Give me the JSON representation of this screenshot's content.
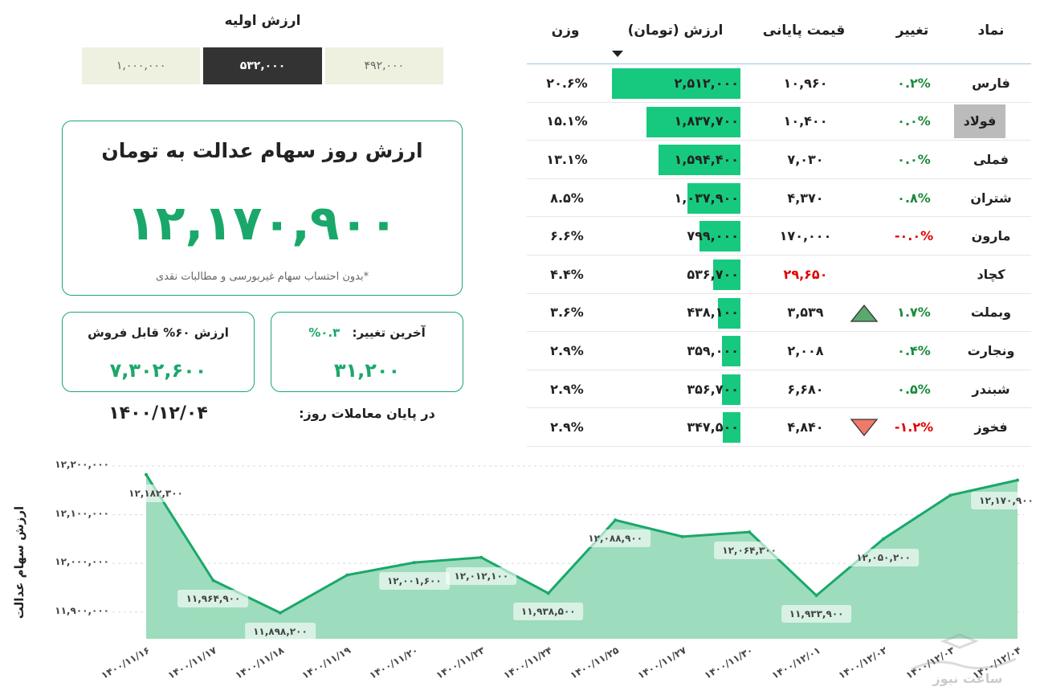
{
  "initial_value": {
    "title": "ارزش اولیه",
    "options": [
      "۱,۰۰۰,۰۰۰",
      "۵۳۲,۰۰۰",
      "۴۹۲,۰۰۰"
    ],
    "selected": "۵۳۲,۰۰۰"
  },
  "main_card": {
    "title": "ارزش روز سهام عدالت به تومان",
    "value": "۱۲,۱۷۰,۹۰۰",
    "note": "*بدون احتساب سهام غیربورسی و مطالبات نقدی"
  },
  "sell_card": {
    "label": "ارزش ۶۰% قابل فروش",
    "value": "۷,۳۰۲,۶۰۰"
  },
  "change_card": {
    "label": "آخرین تغییر:",
    "pct": "۰.۳%",
    "value": "۳۱,۲۰۰"
  },
  "date": {
    "label": "در پایان معاملات روز:",
    "value": "۱۴۰۰/۱۲/۰۴"
  },
  "table": {
    "headers": {
      "symbol": "نماد",
      "change": "تغییر",
      "price": "قیمت پایانی",
      "value": "ارزش (تومان)",
      "weight": "وزن"
    },
    "rows": [
      {
        "symbol": "فارس",
        "change": "۰.۲%",
        "dir": "pos",
        "price": "۱۰,۹۶۰",
        "price_color": "",
        "value": "۲,۵۱۲,۰۰۰",
        "weight": "۲۰.۶%",
        "bar": 2512000,
        "arrow": "",
        "highlight": false
      },
      {
        "symbol": "فولاد",
        "change": "۰.۰%",
        "dir": "pos",
        "price": "۱۰,۴۰۰",
        "price_color": "",
        "value": "۱,۸۳۷,۷۰۰",
        "weight": "۱۵.۱%",
        "bar": 1837700,
        "arrow": "",
        "highlight": true
      },
      {
        "symbol": "فملی",
        "change": "۰.۰%",
        "dir": "pos",
        "price": "۷,۰۳۰",
        "price_color": "",
        "value": "۱,۵۹۴,۴۰۰",
        "weight": "۱۳.۱%",
        "bar": 1594400,
        "arrow": "",
        "highlight": false
      },
      {
        "symbol": "شتران",
        "change": "۰.۸%",
        "dir": "pos",
        "price": "۴,۳۷۰",
        "price_color": "",
        "value": "۱,۰۳۷,۹۰۰",
        "weight": "۸.۵%",
        "bar": 1037900,
        "arrow": "",
        "highlight": false
      },
      {
        "symbol": "مارون",
        "change": "-۰.۰%",
        "dir": "neg",
        "price": "۱۷۰,۰۰۰",
        "price_color": "",
        "value": "۷۹۹,۰۰۰",
        "weight": "۶.۶%",
        "bar": 799000,
        "arrow": "",
        "highlight": false
      },
      {
        "symbol": "کچاد",
        "change": "",
        "dir": "pos",
        "price": "۲۹,۶۵۰",
        "price_color": "neg",
        "value": "۵۳۶,۷۰۰",
        "weight": "۴.۴%",
        "bar": 536700,
        "arrow": "",
        "highlight": false
      },
      {
        "symbol": "وبملت",
        "change": "۱.۷%",
        "dir": "pos",
        "price": "۳,۵۳۹",
        "price_color": "",
        "value": "۴۳۸,۱۰۰",
        "weight": "۳.۶%",
        "bar": 438100,
        "arrow": "up",
        "highlight": false
      },
      {
        "symbol": "ونجارت",
        "change": "۰.۴%",
        "dir": "pos",
        "price": "۲,۰۰۸",
        "price_color": "",
        "value": "۳۵۹,۰۰۰",
        "weight": "۲.۹%",
        "bar": 359000,
        "arrow": "",
        "highlight": false
      },
      {
        "symbol": "شبندر",
        "change": "۰.۵%",
        "dir": "pos",
        "price": "۶,۶۸۰",
        "price_color": "",
        "value": "۳۵۶,۷۰۰",
        "weight": "۲.۹%",
        "bar": 356700,
        "arrow": "",
        "highlight": false
      },
      {
        "symbol": "فخوز",
        "change": "-۱.۲%",
        "dir": "neg",
        "price": "۴,۸۴۰",
        "price_color": "",
        "value": "۳۴۷,۵۰۰",
        "weight": "۲.۹%",
        "bar": 347500,
        "arrow": "down",
        "highlight": false
      }
    ],
    "bar_max": 2512000
  },
  "colors": {
    "accent": "#1aa86a",
    "bar": "#17c97e",
    "area": "#9ddcbc",
    "line": "#1aa86a",
    "negative": "#e00000",
    "up_arrow": "#5aa86e",
    "down_arrow": "#f07a6a"
  },
  "watermark": "ساعت نیوز",
  "chart_data": {
    "type": "area",
    "ylabel": "ارزش سهام عدالت",
    "xlabel": "",
    "x": [
      "۱۴۰۰/۱۱/۱۶",
      "۱۴۰۰/۱۱/۱۷",
      "۱۴۰۰/۱۱/۱۸",
      "۱۴۰۰/۱۱/۱۹",
      "۱۴۰۰/۱۱/۲۰",
      "۱۴۰۰/۱۱/۲۳",
      "۱۴۰۰/۱۱/۲۴",
      "۱۴۰۰/۱۱/۲۵",
      "۱۴۰۰/۱۱/۲۷",
      "۱۴۰۰/۱۱/۳۰",
      "۱۴۰۰/۱۲/۰۱",
      "۱۴۰۰/۱۲/۰۲",
      "۱۴۰۰/۱۲/۰۳",
      "۱۴۰۰/۱۲/۰۴"
    ],
    "values": [
      12182300,
      11964900,
      11898200,
      11976000,
      12001600,
      12012100,
      11938500,
      12088900,
      12055000,
      12064300,
      11933900,
      12050200,
      12140000,
      12170900
    ],
    "labels": [
      "۱۲,۱۸۲,۳۰۰",
      "۱۱,۹۶۴,۹۰۰",
      "۱۱,۸۹۸,۲۰۰",
      "",
      "۱۲,۰۰۱,۶۰۰",
      "۱۲,۰۱۲,۱۰۰",
      "۱۱,۹۳۸,۵۰۰",
      "۱۲,۰۸۸,۹۰۰",
      "",
      "۱۲,۰۶۴,۳۰۰",
      "۱۱,۹۳۳,۹۰۰",
      "۱۲,۰۵۰,۲۰۰",
      "",
      "۱۲,۱۷۰,۹۰۰"
    ],
    "yticks": [
      11900000,
      12000000,
      12100000,
      12200000
    ],
    "ytick_labels": [
      "۱۱,۹۰۰,۰۰۰",
      "۱۲,۰۰۰,۰۰۰",
      "۱۲,۱۰۰,۰۰۰",
      "۱۲,۲۰۰,۰۰۰"
    ],
    "ylim": [
      11845000,
      12200000
    ],
    "grid": true
  }
}
